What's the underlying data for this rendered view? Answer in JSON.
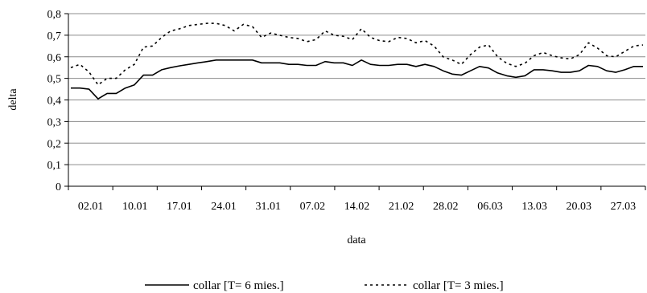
{
  "chart_data": {
    "type": "line",
    "xlabel": "data",
    "ylabel": "delta",
    "ylim": [
      0,
      0.8
    ],
    "y_ticks": [
      "0",
      "0,1",
      "0,2",
      "0,3",
      "0,4",
      "0,5",
      "0,6",
      "0,7",
      "0,8"
    ],
    "x_ticks": [
      "02.01",
      "10.01",
      "17.01",
      "24.01",
      "31.01",
      "07.02",
      "14.02",
      "21.02",
      "28.02",
      "06.03",
      "13.03",
      "20.03",
      "27.03"
    ],
    "grid": "horizontal",
    "legend": "bottom",
    "series": [
      {
        "name": "collar [T= 6 mies.]",
        "style": "solid",
        "color": "#000000",
        "values": [
          0.455,
          0.455,
          0.45,
          0.405,
          0.43,
          0.43,
          0.455,
          0.47,
          0.515,
          0.515,
          0.54,
          0.55,
          0.558,
          0.565,
          0.572,
          0.578,
          0.585,
          0.585,
          0.585,
          0.585,
          0.585,
          0.572,
          0.572,
          0.572,
          0.565,
          0.565,
          0.56,
          0.56,
          0.578,
          0.572,
          0.572,
          0.56,
          0.585,
          0.565,
          0.56,
          0.56,
          0.565,
          0.565,
          0.555,
          0.565,
          0.555,
          0.535,
          0.52,
          0.515,
          0.535,
          0.555,
          0.548,
          0.525,
          0.512,
          0.505,
          0.512,
          0.54,
          0.54,
          0.535,
          0.528,
          0.528,
          0.535,
          0.56,
          0.555,
          0.535,
          0.528,
          0.54,
          0.555,
          0.555
        ]
      },
      {
        "name": "collar [T= 3 mies.]",
        "style": "dotted",
        "color": "#000000",
        "values": [
          0.55,
          0.565,
          0.53,
          0.47,
          0.5,
          0.5,
          0.54,
          0.565,
          0.645,
          0.65,
          0.69,
          0.72,
          0.73,
          0.745,
          0.75,
          0.755,
          0.755,
          0.745,
          0.72,
          0.75,
          0.74,
          0.69,
          0.71,
          0.7,
          0.69,
          0.685,
          0.67,
          0.68,
          0.72,
          0.7,
          0.695,
          0.68,
          0.73,
          0.69,
          0.675,
          0.67,
          0.69,
          0.685,
          0.665,
          0.675,
          0.65,
          0.6,
          0.585,
          0.565,
          0.61,
          0.645,
          0.655,
          0.6,
          0.57,
          0.555,
          0.57,
          0.605,
          0.62,
          0.605,
          0.595,
          0.59,
          0.61,
          0.665,
          0.64,
          0.605,
          0.6,
          0.625,
          0.65,
          0.655
        ]
      }
    ]
  }
}
